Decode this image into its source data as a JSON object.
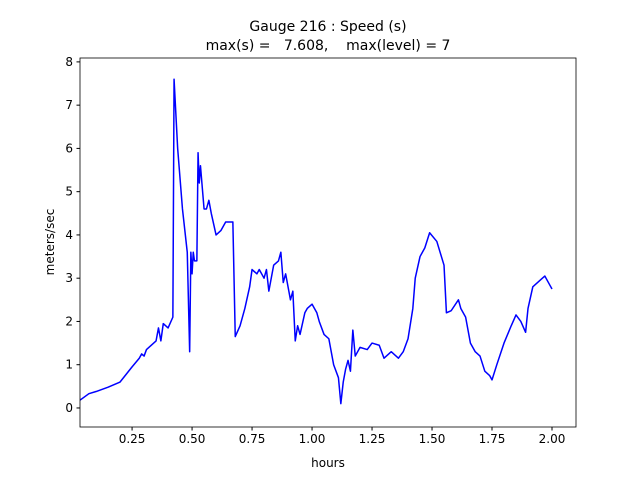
{
  "chart_data": {
    "type": "line",
    "title": "Gauge 216 : Speed (s)",
    "subtitle": "max(s) =   7.608,    max(level) = 7",
    "x_label": "hours",
    "y_label": "meters/sec",
    "xlim": [
      0.033,
      2.1
    ],
    "ylim": [
      -0.44,
      8.09
    ],
    "xticks": [
      0.25,
      {
        "value": 0.5,
        "label": "0.50"
      },
      0.75,
      {
        "value": 1.0,
        "label": "1.00"
      },
      1.25,
      {
        "value": 1.5,
        "label": "1.50"
      },
      1.75,
      {
        "value": 2.0,
        "label": "2.00"
      }
    ],
    "yticks": [
      0,
      1,
      2,
      3,
      4,
      5,
      6,
      7,
      8
    ],
    "grid": false,
    "x": [
      0.033,
      0.07,
      0.1,
      0.15,
      0.2,
      0.25,
      0.28,
      0.29,
      0.3,
      0.31,
      0.35,
      0.36,
      0.37,
      0.38,
      0.4,
      0.42,
      0.425,
      0.44,
      0.46,
      0.48,
      0.49,
      0.495,
      0.5,
      0.505,
      0.51,
      0.52,
      0.525,
      0.53,
      0.535,
      0.55,
      0.56,
      0.57,
      0.58,
      0.6,
      0.62,
      0.64,
      0.67,
      0.68,
      0.7,
      0.72,
      0.74,
      0.75,
      0.77,
      0.78,
      0.8,
      0.81,
      0.82,
      0.84,
      0.86,
      0.87,
      0.88,
      0.89,
      0.9,
      0.91,
      0.92,
      0.93,
      0.94,
      0.95,
      0.97,
      0.98,
      1.0,
      1.02,
      1.03,
      1.05,
      1.07,
      1.09,
      1.11,
      1.12,
      1.13,
      1.14,
      1.15,
      1.16,
      1.17,
      1.18,
      1.2,
      1.23,
      1.25,
      1.28,
      1.3,
      1.33,
      1.36,
      1.38,
      1.4,
      1.42,
      1.43,
      1.45,
      1.47,
      1.49,
      1.52,
      1.55,
      1.56,
      1.58,
      1.61,
      1.62,
      1.64,
      1.66,
      1.68,
      1.7,
      1.72,
      1.74,
      1.75,
      1.77,
      1.8,
      1.83,
      1.85,
      1.87,
      1.89,
      1.9,
      1.92,
      1.95,
      1.97,
      1.99,
      2.0
    ],
    "series": [
      {
        "name": "s",
        "color": "#0000ff",
        "values": [
          0.18,
          0.33,
          0.38,
          0.48,
          0.6,
          0.95,
          1.15,
          1.25,
          1.2,
          1.35,
          1.55,
          1.85,
          1.55,
          1.95,
          1.85,
          2.1,
          7.6,
          6.0,
          4.6,
          3.6,
          1.3,
          3.6,
          3.1,
          3.6,
          3.4,
          3.4,
          5.9,
          5.2,
          5.6,
          4.6,
          4.6,
          4.8,
          4.5,
          4.0,
          4.1,
          4.3,
          4.3,
          1.65,
          1.9,
          2.3,
          2.8,
          3.2,
          3.1,
          3.2,
          3.0,
          3.2,
          2.7,
          3.3,
          3.4,
          3.6,
          2.9,
          3.1,
          2.8,
          2.5,
          2.7,
          1.55,
          1.9,
          1.7,
          2.2,
          2.3,
          2.4,
          2.2,
          2.0,
          1.7,
          1.6,
          1.0,
          0.7,
          0.1,
          0.6,
          0.9,
          1.1,
          0.85,
          1.8,
          1.2,
          1.4,
          1.35,
          1.5,
          1.45,
          1.15,
          1.3,
          1.15,
          1.3,
          1.6,
          2.3,
          3.0,
          3.5,
          3.7,
          4.05,
          3.85,
          3.3,
          2.2,
          2.25,
          2.5,
          2.3,
          2.1,
          1.5,
          1.3,
          1.2,
          0.85,
          0.75,
          0.65,
          1.0,
          1.5,
          1.9,
          2.15,
          2.0,
          1.75,
          2.3,
          2.8,
          2.95,
          3.05,
          2.85,
          2.75
        ]
      }
    ]
  }
}
